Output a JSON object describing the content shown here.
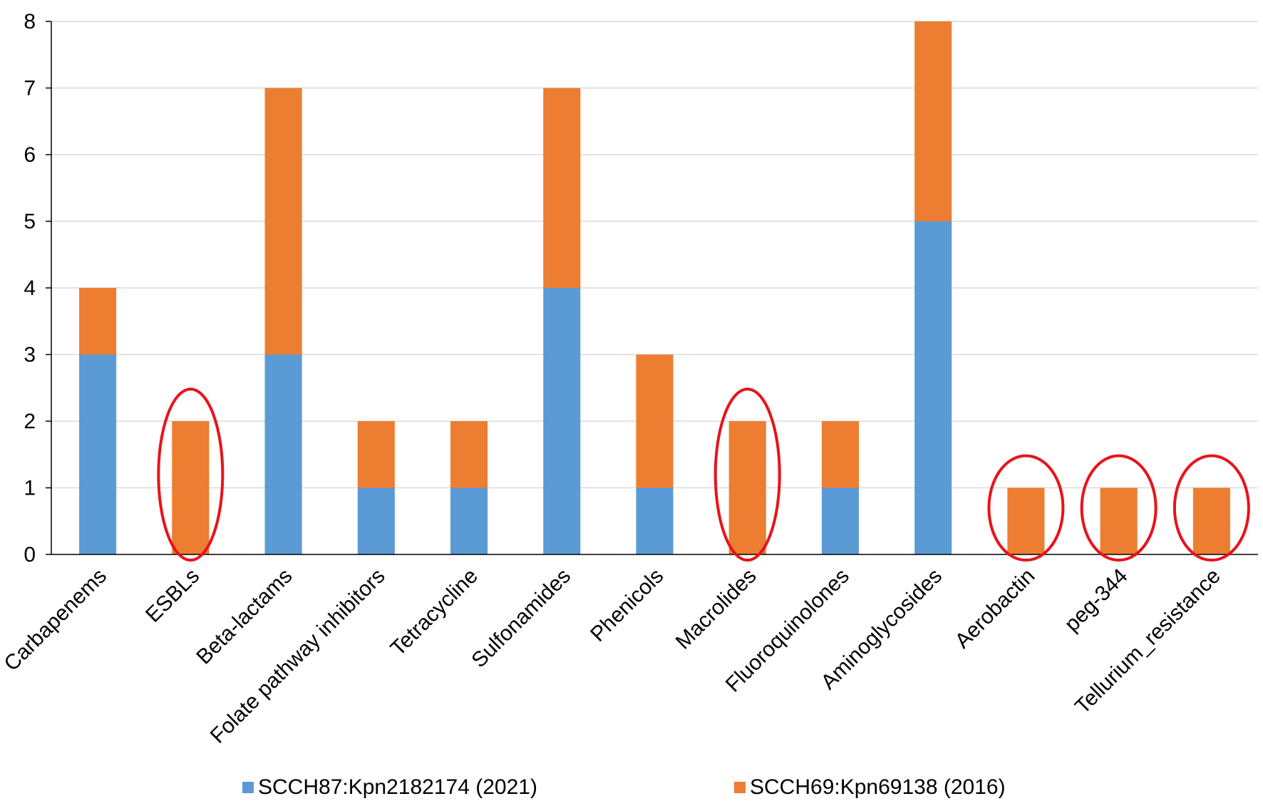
{
  "chart_data": {
    "type": "bar",
    "stacked": true,
    "categories": [
      "Carbapenems",
      "ESBLs",
      "Beta-lactams",
      "Folate pathway inhibitors",
      "Tetracycline",
      "Sulfonamides",
      "Phenicols",
      "Macrolides",
      "Fluoroquinolones",
      "Aminoglycosides",
      "Aerobactin",
      "peg-344",
      "Tellurium_resistance"
    ],
    "series": [
      {
        "name": "SCCH87:Kpn2182174 (2021)",
        "color": "#5B9BD5",
        "values": [
          3,
          0,
          3,
          1,
          1,
          4,
          1,
          0,
          1,
          5,
          0,
          0,
          0
        ]
      },
      {
        "name": "SCCH69:Kpn69138 (2016)",
        "color": "#ED7D31",
        "values": [
          1,
          2,
          4,
          1,
          1,
          3,
          2,
          2,
          1,
          3,
          1,
          1,
          1
        ]
      }
    ],
    "ylim": [
      0,
      8
    ],
    "yticks": [
      "0",
      "1",
      "2",
      "3",
      "4",
      "5",
      "6",
      "7",
      "8"
    ],
    "grid": true,
    "legend_position": "bottom",
    "highlighted_categories": [
      "ESBLs",
      "Macrolides",
      "Aerobactin",
      "peg-344",
      "Tellurium_resistance"
    ],
    "highlight_color": "#E8131A"
  }
}
